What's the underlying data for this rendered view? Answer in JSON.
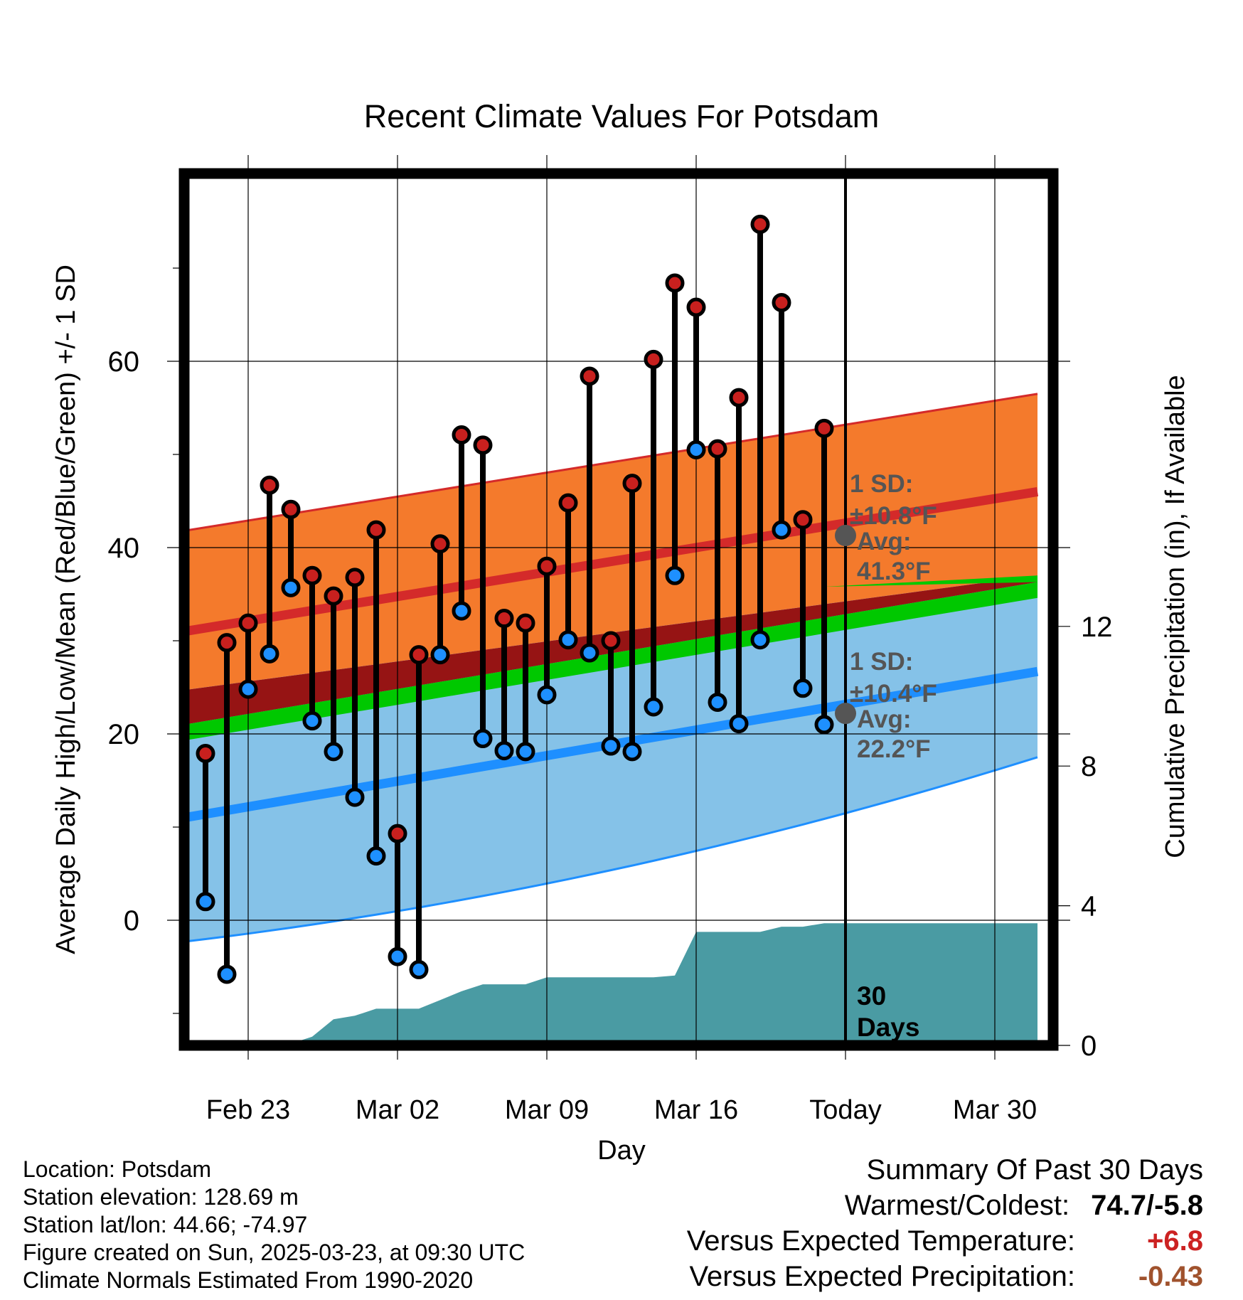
{
  "chart_data": {
    "type": "line",
    "title": "Recent Climate Values For Potsdam",
    "xlabel": "Day",
    "ylabel": "Average Daily High/Low/Mean (Red/Blue/Green) +/- 1 SD",
    "y2label": "Cumulative Precipitation (in), If Available",
    "ylim": [
      -13.5,
      79
    ],
    "y2lim": [
      0,
      24.7
    ],
    "x_tick_labels": [
      "Feb 23",
      "Mar 02",
      "Mar 09",
      "Mar 16",
      "Today",
      "Mar 30"
    ],
    "y_tick_labels": [
      "0",
      "20",
      "40",
      "60"
    ],
    "y2_tick_labels": [
      "0",
      "4",
      "8",
      "12"
    ],
    "grid": true,
    "observed_days": [
      "Feb 21",
      "Feb 22",
      "Feb 23",
      "Feb 24",
      "Feb 25",
      "Feb 26",
      "Feb 27",
      "Feb 28",
      "Mar 01",
      "Mar 02",
      "Mar 03",
      "Mar 04",
      "Mar 05",
      "Mar 06",
      "Mar 07",
      "Mar 08",
      "Mar 09",
      "Mar 10",
      "Mar 11",
      "Mar 12",
      "Mar 13",
      "Mar 14",
      "Mar 15",
      "Mar 16",
      "Mar 17",
      "Mar 18",
      "Mar 19",
      "Mar 20",
      "Mar 21",
      "Mar 22"
    ],
    "observed_high": [
      17.9,
      29.8,
      31.9,
      46.7,
      44.1,
      37.0,
      34.8,
      36.8,
      41.9,
      9.3,
      28.5,
      40.4,
      52.1,
      51.0,
      32.4,
      31.9,
      38.0,
      44.8,
      58.4,
      30.0,
      46.9,
      60.2,
      68.4,
      65.8,
      50.6,
      56.1,
      74.7,
      66.3,
      43.0,
      52.8
    ],
    "observed_low": [
      2.0,
      -5.8,
      24.8,
      28.6,
      35.7,
      21.4,
      18.1,
      13.2,
      6.9,
      -3.9,
      -5.3,
      28.5,
      33.2,
      19.5,
      18.2,
      18.1,
      24.2,
      30.1,
      28.7,
      18.7,
      18.1,
      22.9,
      37.0,
      50.5,
      23.4,
      21.1,
      30.1,
      41.9,
      24.9,
      21.0
    ],
    "normal_days": [
      "Feb 20",
      "Apr 01"
    ],
    "normal_high_mean": [
      31.0,
      46.0
    ],
    "normal_high_sd_upper": [
      41.8,
      56.5
    ],
    "normal_low_mean": [
      11.0,
      26.7
    ],
    "normal_low_sd_lower": [
      -2.3,
      17.5
    ],
    "normal_mean": [
      21.0,
      36.3
    ],
    "normal_mean_band_top": [
      24.7,
      37.0
    ],
    "precip_days": [
      "Feb 20",
      "Feb 24",
      "Feb 25",
      "Feb 26",
      "Feb 27",
      "Feb 28",
      "Mar 01",
      "Mar 02",
      "Mar 03",
      "Mar 04",
      "Mar 05",
      "Mar 06",
      "Mar 07",
      "Mar 08",
      "Mar 09",
      "Mar 10",
      "Mar 11",
      "Mar 12",
      "Mar 13",
      "Mar 14",
      "Mar 15",
      "Mar 16",
      "Mar 17",
      "Mar 18",
      "Mar 19",
      "Mar 20",
      "Mar 21",
      "Mar 22",
      "Apr 01"
    ],
    "cumulative_precip": [
      0.0,
      0.0,
      0.05,
      0.25,
      0.75,
      0.85,
      1.05,
      1.05,
      1.05,
      1.3,
      1.55,
      1.75,
      1.75,
      1.75,
      1.95,
      1.95,
      1.95,
      1.95,
      1.95,
      1.95,
      2.0,
      3.25,
      3.25,
      3.25,
      3.25,
      3.4,
      3.4,
      3.5,
      3.5
    ],
    "annotations": {
      "high_sd": "1 SD:",
      "high_sd_value": "±10.8°F",
      "high_avg_label": "Avg:",
      "high_avg_value": "41.3°F",
      "high_avg_today": 41.3,
      "low_sd": "1 SD:",
      "low_sd_value": "±10.4°F",
      "low_avg_label": "Avg:",
      "low_avg_value": "22.2°F",
      "low_avg_today": 22.2,
      "precip_period": "30",
      "precip_period_unit": "Days"
    },
    "colors": {
      "high_band": "#f47a2c",
      "high_line": "#d42a2a",
      "high_marker": "#c8201e",
      "low_band": "#85c2e8",
      "low_line": "#1e8fff",
      "low_marker": "#1e90ff",
      "mean_band": "#00c800",
      "mean_dark": "#961414",
      "precip": "#4a9ba3",
      "avg_dot": "#555555"
    }
  },
  "footer": {
    "location": "Location: Potsdam",
    "elevation": "Station elevation: 128.69 m",
    "latlon": "Station lat/lon: 44.66; -74.97",
    "created": "Figure created on Sun, 2025-03-23, at 09:30 UTC",
    "normals": "Climate Normals Estimated From 1990-2020"
  },
  "summary": {
    "title": "Summary Of Past 30 Days",
    "warm_cold_label": "Warmest/Coldest:",
    "warm_cold_value": "74.7/-5.8",
    "temp_label": "Versus Expected Temperature:",
    "temp_value": "+6.8",
    "temp_color": "#cc2222",
    "precip_label": "Versus Expected Precipitation:",
    "precip_value": "-0.43",
    "precip_color": "#a0522d"
  }
}
